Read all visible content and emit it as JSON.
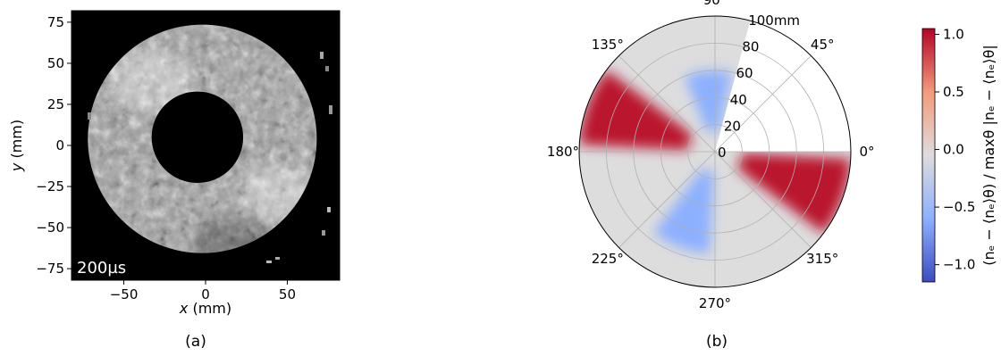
{
  "figure": {
    "panel_a_caption": "(a)",
    "panel_b_caption": "(b)"
  },
  "chart_data": [
    {
      "type": "heatmap",
      "panel": "a",
      "xlabel_var": "x",
      "xlabel_unit": " (mm)",
      "ylabel_var": "y",
      "ylabel_unit": " (mm)",
      "xlim": [
        -82,
        82
      ],
      "ylim": [
        -82,
        82
      ],
      "x_ticks": [
        -50,
        0,
        50
      ],
      "x_tick_labels": [
        "−50",
        "0",
        "50"
      ],
      "y_ticks": [
        75,
        50,
        25,
        0,
        -25,
        -50,
        -75
      ],
      "y_tick_labels": [
        "75",
        "50",
        "25",
        "0",
        "−25",
        "−50",
        "−75"
      ],
      "annotation": "200µs",
      "colormap": "gray",
      "background": "#000000",
      "annulus": {
        "center": [
          -2,
          4
        ],
        "inner_radius_mm": 28,
        "outer_radius_mm": 70
      },
      "grid": false
    },
    {
      "type": "heatmap",
      "panel": "b",
      "projection": "polar",
      "r_ticks": [
        0,
        20,
        40,
        60,
        80,
        100
      ],
      "r_tick_labels": [
        "0",
        "20",
        "40",
        "60",
        "80",
        "100mm"
      ],
      "theta_ticks": [
        0,
        45,
        90,
        135,
        180,
        225,
        270,
        315
      ],
      "theta_tick_labels": [
        "0°",
        "45°",
        "90°",
        "135°",
        "180°",
        "225°",
        "270°",
        "315°"
      ],
      "rmax": 100,
      "blank_sector_deg": [
        0,
        75
      ],
      "grid": true,
      "colormap": "coolwarm",
      "colorbar": {
        "ticks": [
          1.0,
          0.5,
          0.0,
          -0.5,
          -1.0
        ],
        "tick_labels": [
          "1.0",
          "0.5",
          "0.0",
          "−0.5",
          "−1.0"
        ],
        "range": [
          -1.15,
          1.05
        ],
        "label": "(nₑ − ⟨nₑ⟩θ) / maxθ |nₑ − ⟨nₑ⟩θ|"
      },
      "lobes": [
        {
          "theta_deg": 160,
          "r_range": [
            20,
            100
          ],
          "value": 1.0
        },
        {
          "theta_deg": 340,
          "r_range": [
            20,
            100
          ],
          "value": 1.0
        },
        {
          "theta_deg": 250,
          "r_range": [
            15,
            75
          ],
          "value": -0.6
        },
        {
          "theta_deg": 95,
          "r_range": [
            15,
            60
          ],
          "value": -0.6
        }
      ],
      "colors": {
        "low": "#3b4cc0",
        "mid": "#dddddd",
        "high": "#b40426"
      }
    }
  ]
}
